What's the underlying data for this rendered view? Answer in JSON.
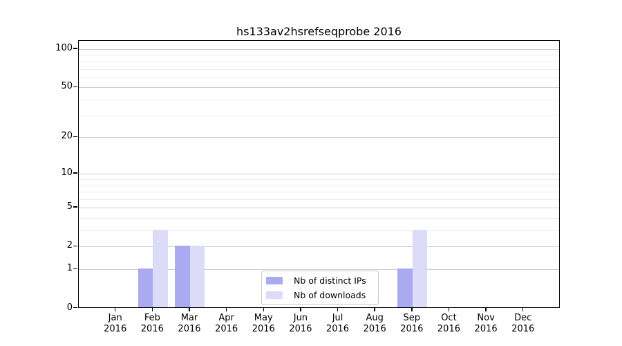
{
  "chart_data": {
    "type": "bar",
    "title": "hs133av2hsrefseqprobe 2016",
    "categories": [
      {
        "label": "Jan",
        "sublabel": "2016"
      },
      {
        "label": "Feb",
        "sublabel": "2016"
      },
      {
        "label": "Mar",
        "sublabel": "2016"
      },
      {
        "label": "Apr",
        "sublabel": "2016"
      },
      {
        "label": "May",
        "sublabel": "2016"
      },
      {
        "label": "Jun",
        "sublabel": "2016"
      },
      {
        "label": "Jul",
        "sublabel": "2016"
      },
      {
        "label": "Aug",
        "sublabel": "2016"
      },
      {
        "label": "Sep",
        "sublabel": "2016"
      },
      {
        "label": "Oct",
        "sublabel": "2016"
      },
      {
        "label": "Nov",
        "sublabel": "2016"
      },
      {
        "label": "Dec",
        "sublabel": "2016"
      }
    ],
    "series": [
      {
        "name": "Nb of distinct IPs",
        "color": "#aaaaf2",
        "values": [
          0,
          1,
          2,
          0,
          0,
          0,
          0,
          0,
          1,
          0,
          0,
          0
        ]
      },
      {
        "name": "Nb of downloads",
        "color": "#dcdcf8",
        "values": [
          0,
          3,
          2,
          0,
          0,
          0,
          0,
          0,
          3,
          0,
          0,
          0
        ]
      }
    ],
    "y_axis": {
      "scale": "log1p",
      "ticks": [
        0,
        1,
        2,
        5,
        10,
        20,
        50,
        100
      ],
      "minor_gridlines": [
        3,
        4,
        6,
        7,
        8,
        9,
        30,
        40,
        60,
        70,
        80,
        90
      ],
      "ylim": [
        0,
        100
      ]
    },
    "legend": {
      "position": "bottom-center"
    },
    "colors": {
      "major_grid": "#cccccc",
      "minor_grid": "#ebebeb",
      "axis": "#000000",
      "background": "#ffffff"
    }
  }
}
